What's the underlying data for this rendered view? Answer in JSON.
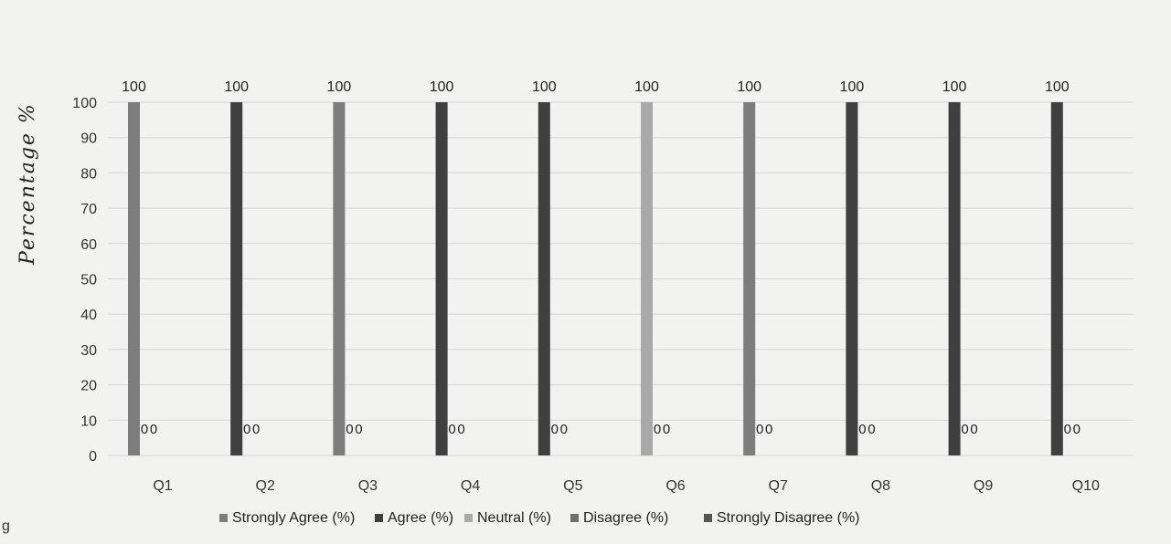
{
  "stray_mark": "g",
  "chart_data": {
    "type": "bar",
    "title": "",
    "xlabel": "",
    "ylabel": "Percentage %",
    "ylim": [
      0,
      100
    ],
    "yticks": [
      0,
      10,
      20,
      30,
      40,
      50,
      60,
      70,
      80,
      90,
      100
    ],
    "grid": true,
    "legend_position": "bottom",
    "categories": [
      "Q1",
      "Q2",
      "Q3",
      "Q4",
      "Q5",
      "Q6",
      "Q7",
      "Q8",
      "Q9",
      "Q10"
    ],
    "series": [
      {
        "name": "Strongly Agree (%)",
        "color": "#7d7d7d",
        "values": [
          100,
          0,
          100,
          0,
          0,
          0,
          100,
          0,
          0,
          0
        ],
        "labels": [
          "100",
          "",
          "100",
          "",
          "",
          "",
          "100",
          "",
          "",
          ""
        ]
      },
      {
        "name": "Agree (%)",
        "color": "#3f3f3f",
        "values": [
          0,
          100,
          0,
          100,
          100,
          0,
          0,
          100,
          100,
          100
        ],
        "labels": [
          "",
          "100",
          "",
          "100",
          "100",
          "",
          "",
          "100",
          "100",
          "100"
        ]
      },
      {
        "name": "Neutral (%)",
        "color": "#a9a9a9",
        "values": [
          0,
          0,
          0,
          0,
          0,
          100,
          0,
          0,
          0,
          0
        ],
        "labels": [
          "",
          "",
          "",
          "",
          "",
          "100",
          "",
          "",
          "",
          ""
        ]
      },
      {
        "name": "Disagree (%)",
        "color": "#6e6e6e",
        "values": [
          0,
          0,
          0,
          0,
          0,
          0,
          0,
          0,
          0,
          0
        ],
        "labels": [
          "0",
          "0",
          "0",
          "0",
          "0",
          "0",
          "0",
          "0",
          "0",
          "0"
        ]
      },
      {
        "name": "Strongly Disagree (%)",
        "color": "#555555",
        "values": [
          0,
          0,
          0,
          0,
          0,
          0,
          0,
          0,
          0,
          0
        ],
        "labels": [
          "0",
          "0",
          "0",
          "0",
          "0",
          "0",
          "0",
          "0",
          "0",
          "0"
        ]
      }
    ]
  }
}
